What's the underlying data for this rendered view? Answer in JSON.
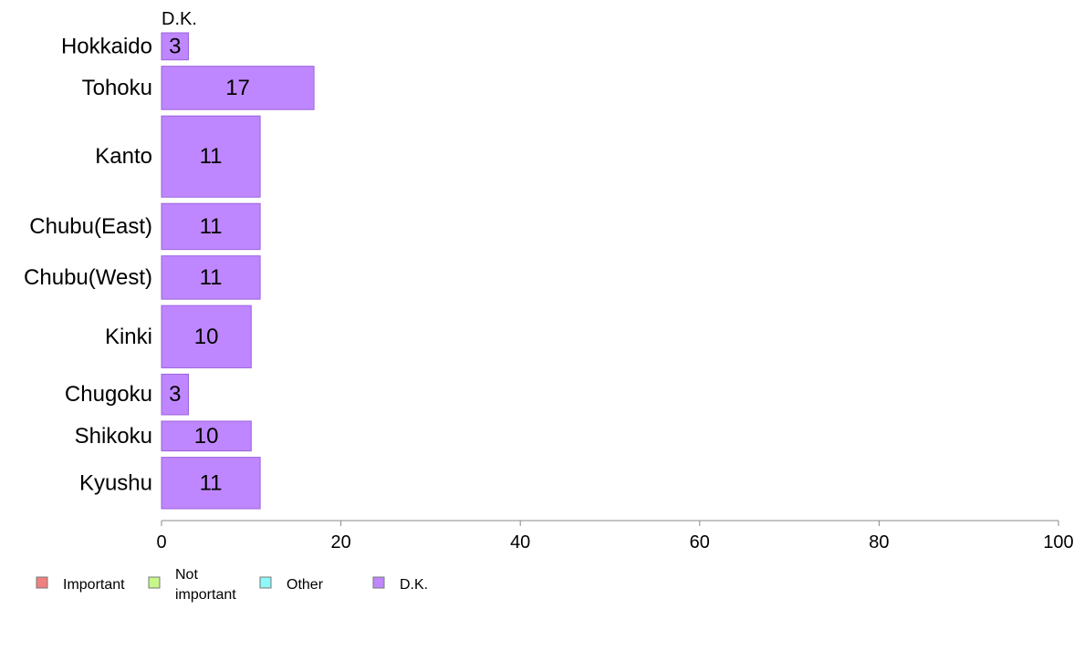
{
  "chart_data": {
    "type": "bar",
    "orientation": "horizontal",
    "series_title": "D.K.",
    "categories": [
      "Hokkaido",
      "Tohoku",
      "Kanto",
      "Chubu(East)",
      "Chubu(West)",
      "Kinki",
      "Chugoku",
      "Shikoku",
      "Kyushu"
    ],
    "series": [
      {
        "name": "D.K.",
        "values": [
          3,
          17,
          11,
          11,
          11,
          10,
          3,
          10,
          11
        ]
      }
    ],
    "value_labels": [
      "3",
      "17",
      "11",
      "11",
      "11",
      "10",
      "3",
      "10",
      "11"
    ],
    "bar_thickness_relative": [
      0.5,
      0.8,
      1.5,
      0.85,
      0.8,
      1.15,
      0.75,
      0.55,
      0.95
    ],
    "xlim": [
      0,
      100
    ],
    "xticks": [
      0,
      20,
      40,
      60,
      80,
      100
    ],
    "xlabel": "",
    "ylabel": "",
    "grid": false,
    "legend_position": "bottom-left",
    "legend": [
      {
        "label": "Important",
        "color": "#f08080"
      },
      {
        "label": "Not\nimportant",
        "color": "#c6f78a"
      },
      {
        "label": "Other",
        "color": "#8ef7f7"
      },
      {
        "label": "D.K.",
        "color": "#bf87ff"
      }
    ],
    "bar_color": "#bf87ff",
    "bar_stroke": "#9a62dd",
    "axis_color": "#888888"
  }
}
